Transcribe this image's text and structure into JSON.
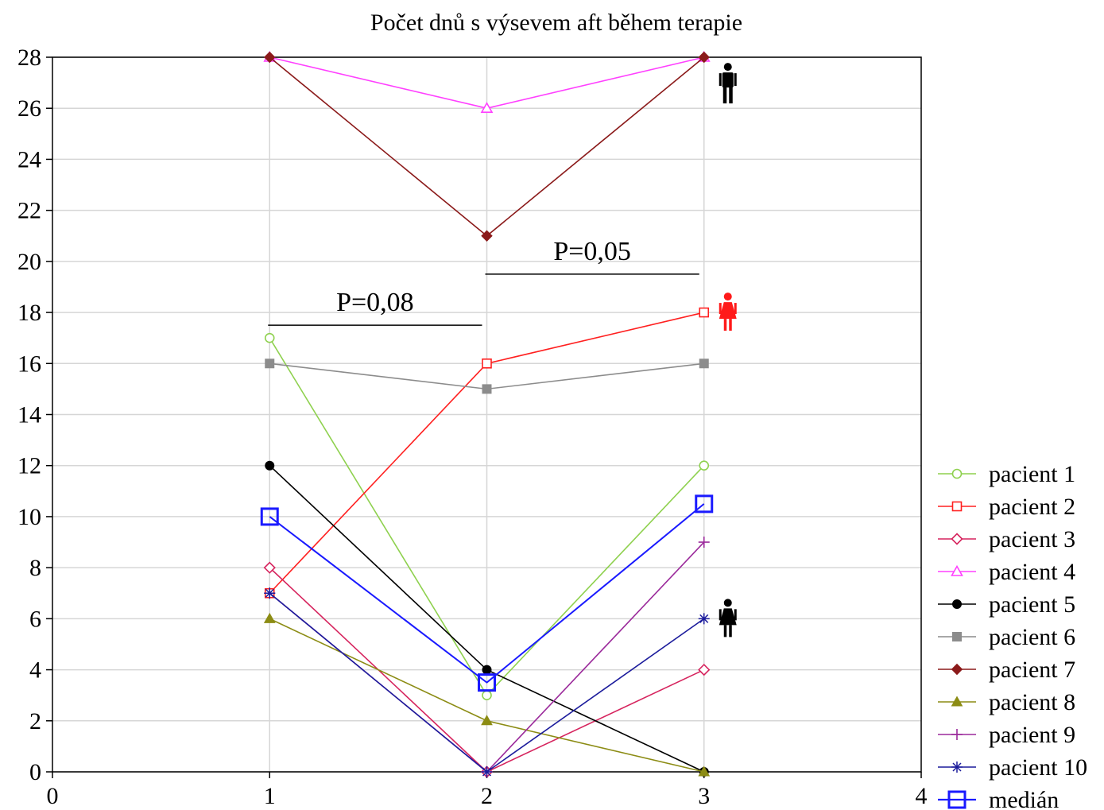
{
  "chart_data": {
    "type": "line",
    "title": "Počet dnů s výsevem aft během terapie",
    "xlabel": "",
    "ylabel": "",
    "xlim": [
      0,
      4
    ],
    "ylim": [
      0,
      28
    ],
    "x_ticks": [
      "0",
      "1",
      "2",
      "3",
      "4"
    ],
    "y_ticks": [
      "0",
      "2",
      "4",
      "6",
      "8",
      "10",
      "12",
      "14",
      "16",
      "18",
      "20",
      "22",
      "24",
      "26",
      "28"
    ],
    "x": [
      1,
      2,
      3
    ],
    "grid": true,
    "legend_position": "right",
    "series": [
      {
        "name": "pacient 1",
        "values": [
          17,
          3,
          12
        ],
        "color": "#8fd14f",
        "marker": "circle-open"
      },
      {
        "name": "pacient 2",
        "values": [
          7,
          16,
          18
        ],
        "color": "#ff2020",
        "marker": "square-open"
      },
      {
        "name": "pacient 3",
        "values": [
          8,
          0,
          4
        ],
        "color": "#d6245e",
        "marker": "diamond-open"
      },
      {
        "name": "pacient 4",
        "values": [
          28,
          26,
          28
        ],
        "color": "#ff40ff",
        "marker": "triangle-open"
      },
      {
        "name": "pacient 5",
        "values": [
          12,
          4,
          0
        ],
        "color": "#000000",
        "marker": "circle"
      },
      {
        "name": "pacient 6",
        "values": [
          16,
          15,
          16
        ],
        "color": "#8c8c8c",
        "marker": "square"
      },
      {
        "name": "pacient 7",
        "values": [
          28,
          21,
          28
        ],
        "color": "#8b1a1a",
        "marker": "diamond"
      },
      {
        "name": "pacient 8",
        "values": [
          6,
          2,
          0
        ],
        "color": "#8c8c14",
        "marker": "triangle"
      },
      {
        "name": "pacient 9",
        "values": [
          7,
          0,
          9
        ],
        "color": "#9b2a9b",
        "marker": "plus"
      },
      {
        "name": "pacient 10",
        "values": [
          7,
          0,
          6
        ],
        "color": "#1c1c9c",
        "marker": "asterisk"
      },
      {
        "name": "medián",
        "values": [
          10,
          3.5,
          10.5
        ],
        "color": "#1a1aff",
        "marker": "square-open-large"
      }
    ],
    "annotations": [
      {
        "text": "P=0,08",
        "x_from": 1,
        "x_to": 2,
        "y": 17.5
      },
      {
        "text": "P=0,05",
        "x_from": 2,
        "x_to": 3,
        "y": 19.5
      }
    ],
    "icons": [
      {
        "name": "male-person-icon",
        "x": 3,
        "y": 27,
        "color": "#000000"
      },
      {
        "name": "female-person-icon",
        "x": 3,
        "y": 18,
        "color": "#ff1a1a"
      },
      {
        "name": "female-person-icon",
        "x": 3,
        "y": 6,
        "color": "#000000"
      }
    ]
  }
}
